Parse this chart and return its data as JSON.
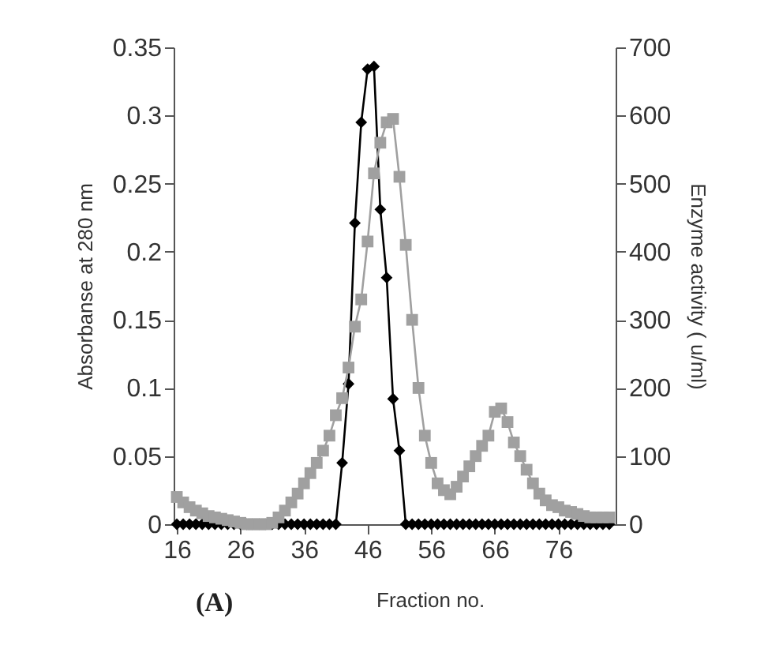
{
  "chart_data": {
    "type": "line",
    "xlabel": "Fraction no.",
    "ylabel": "Absorbanse at 280 nm",
    "y2label": "Enzyme activity ( u/ml)",
    "annotations": [
      "(A)"
    ],
    "x": [
      16,
      17,
      18,
      19,
      20,
      21,
      22,
      23,
      24,
      25,
      26,
      27,
      28,
      29,
      30,
      31,
      32,
      33,
      34,
      35,
      36,
      37,
      38,
      39,
      40,
      41,
      42,
      43,
      44,
      45,
      46,
      47,
      48,
      49,
      50,
      51,
      52,
      53,
      54,
      55,
      56,
      57,
      58,
      59,
      60,
      61,
      62,
      63,
      64,
      65,
      66,
      67,
      68,
      69,
      70,
      71,
      72,
      73,
      74,
      75,
      76,
      77,
      78,
      79,
      80,
      81,
      82,
      83,
      84
    ],
    "xlim": [
      15.5,
      85
    ],
    "xticks": [
      16,
      26,
      36,
      46,
      56,
      66,
      76
    ],
    "ylim": [
      0,
      0.35
    ],
    "yticks": [
      0,
      0.05,
      0.1,
      0.15,
      0.2,
      0.25,
      0.3,
      0.35
    ],
    "y2lim": [
      0,
      700
    ],
    "y2ticks": [
      0,
      100,
      200,
      300,
      400,
      500,
      600,
      700
    ],
    "grid": false,
    "line_style": "solid",
    "series": [
      {
        "color": "#000000",
        "marker": "diamond",
        "values": [
          0,
          0,
          0,
          0,
          0,
          0,
          0,
          0,
          0,
          0,
          0,
          0,
          0,
          0,
          0,
          0,
          0,
          0,
          0,
          0,
          0,
          0,
          0,
          0,
          0,
          0,
          0.045,
          0.103,
          0.221,
          0.295,
          0.334,
          0.336,
          0.231,
          0.181,
          0.092,
          0.054,
          0,
          0,
          0,
          0,
          0,
          0,
          0,
          0,
          0,
          0,
          0,
          0,
          0,
          0,
          0,
          0,
          0,
          0,
          0,
          0,
          0,
          0,
          0,
          0,
          0,
          0,
          0,
          0,
          0,
          0,
          0,
          0,
          0
        ]
      },
      {
        "color": "#a0a0a0",
        "marker": "square",
        "axis": "y2",
        "values": [
          40,
          32,
          25,
          20,
          16,
          12,
          10,
          8,
          6,
          4,
          2,
          0,
          0,
          0,
          0,
          2,
          10,
          20,
          32,
          45,
          60,
          75,
          90,
          108,
          130,
          160,
          185,
          230,
          290,
          330,
          415,
          515,
          560,
          590,
          595,
          510,
          410,
          300,
          200,
          130,
          90,
          60,
          50,
          44,
          55,
          70,
          85,
          100,
          115,
          130,
          165,
          170,
          150,
          120,
          100,
          80,
          60,
          45,
          35,
          28,
          25,
          20,
          18,
          15,
          12,
          10,
          10,
          10,
          10
        ]
      }
    ]
  }
}
